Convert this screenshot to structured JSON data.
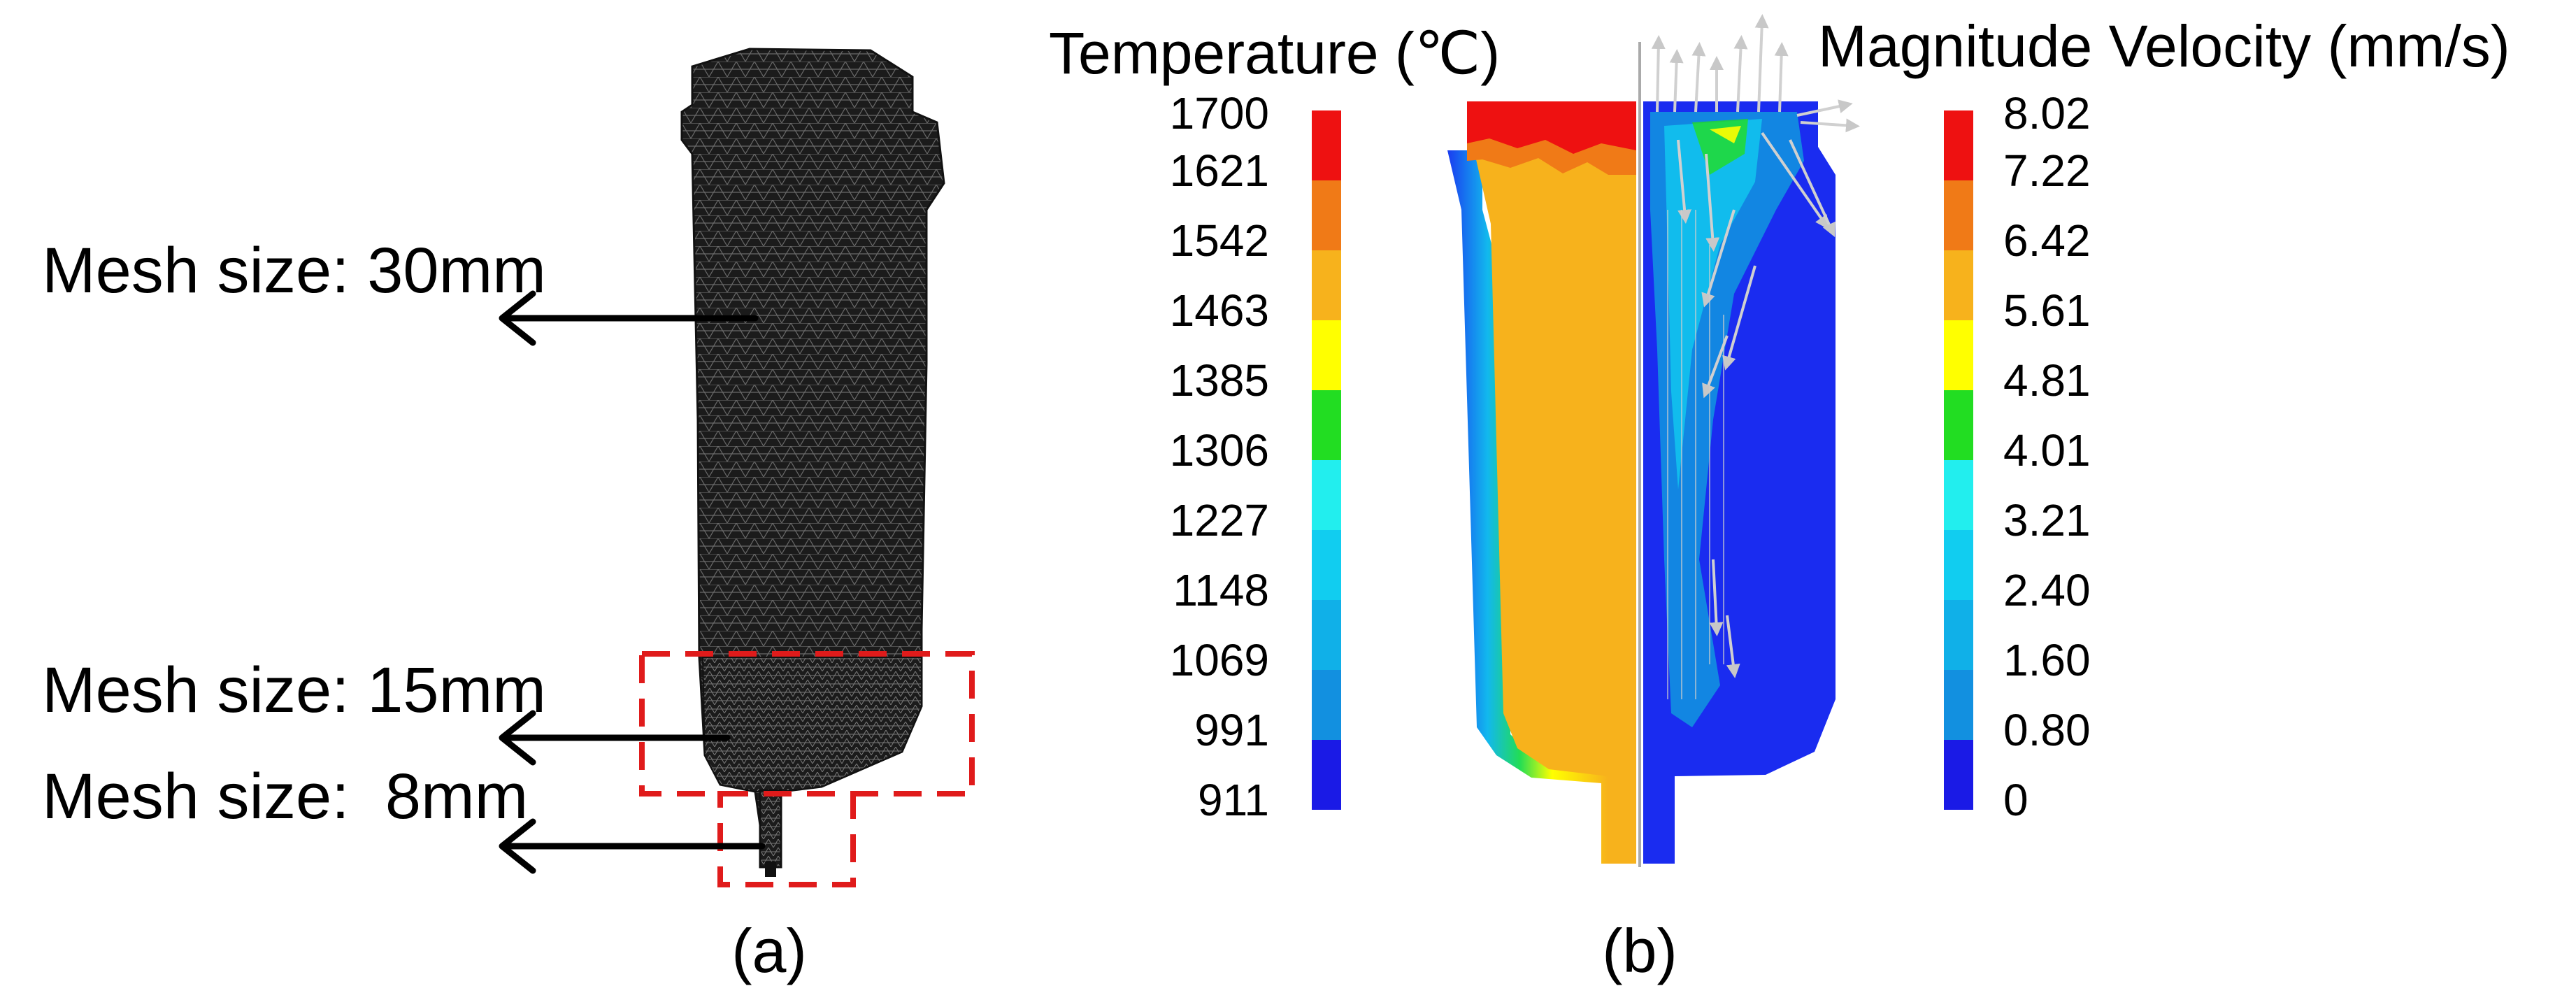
{
  "panel_a": {
    "mesh_labels": [
      "Mesh size: 30mm",
      "Mesh size: 15mm",
      "Mesh size:  8mm"
    ],
    "caption": "(a)"
  },
  "panel_b": {
    "caption": "(b)",
    "temperature_legend": {
      "title": "Temperature (℃)",
      "ticks": [
        "1700",
        "1621",
        "1542",
        "1463",
        "1385",
        "1306",
        "1227",
        "1148",
        "1069",
        "991",
        "911"
      ]
    },
    "velocity_legend": {
      "title": "Magnitude Velocity (mm/s)",
      "ticks": [
        "8.02",
        "7.22",
        "6.42",
        "5.61",
        "4.81",
        "4.01",
        "3.21",
        "2.40",
        "1.60",
        "0.80",
        "0"
      ]
    },
    "legend_colors": [
      "#ee1111",
      "#f07a17",
      "#f7b21c",
      "#ffff00",
      "#22dd22",
      "#22eeee",
      "#11cdf0",
      "#10b0e8",
      "#1290e0",
      "#1a6cf0",
      "#1a1ae6"
    ]
  }
}
